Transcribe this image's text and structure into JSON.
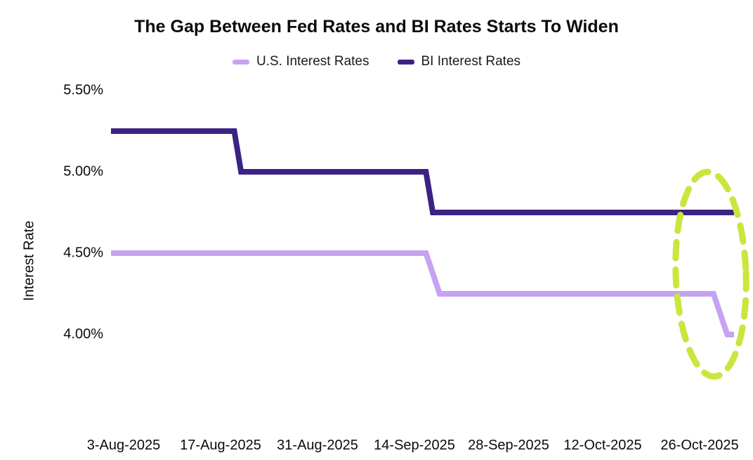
{
  "chart_data": {
    "type": "line",
    "title": "The Gap Between Fed Rates and BI Rates Starts To Widen",
    "ylabel": "Interest Rate",
    "xlabel": "",
    "legend_position": "top",
    "grid": false,
    "y_tick_labels": [
      "5.50%",
      "5.00%",
      "4.50%",
      "4.00%"
    ],
    "y_tick_values": [
      5.5,
      5.0,
      4.5,
      4.0
    ],
    "ylim": [
      4.0,
      5.5
    ],
    "x_tick_labels": [
      "3-Aug-2025",
      "17-Aug-2025",
      "31-Aug-2025",
      "14-Sep-2025",
      "28-Sep-2025",
      "12-Oct-2025",
      "26-Oct-2025"
    ],
    "x_tick_days": [
      2,
      16,
      30,
      44,
      58,
      72,
      86
    ],
    "x_unit": "days-from-line-start",
    "x_domain_days": 91,
    "series": [
      {
        "name": "U.S. Interest Rates",
        "color": "#c5a3f0",
        "points": [
          [
            0,
            4.5
          ],
          [
            46,
            4.5
          ],
          [
            48,
            4.25
          ],
          [
            88,
            4.25
          ],
          [
            90,
            4.0
          ],
          [
            91,
            4.0
          ]
        ]
      },
      {
        "name": "BI Interest Rates",
        "color": "#3b2383",
        "points": [
          [
            0,
            5.25
          ],
          [
            18,
            5.25
          ],
          [
            19,
            5.0
          ],
          [
            46,
            5.0
          ],
          [
            47,
            4.75
          ],
          [
            91,
            4.75
          ]
        ]
      }
    ],
    "annotation": {
      "shape": "dashed-ellipse",
      "color": "#c9e63e"
    }
  }
}
